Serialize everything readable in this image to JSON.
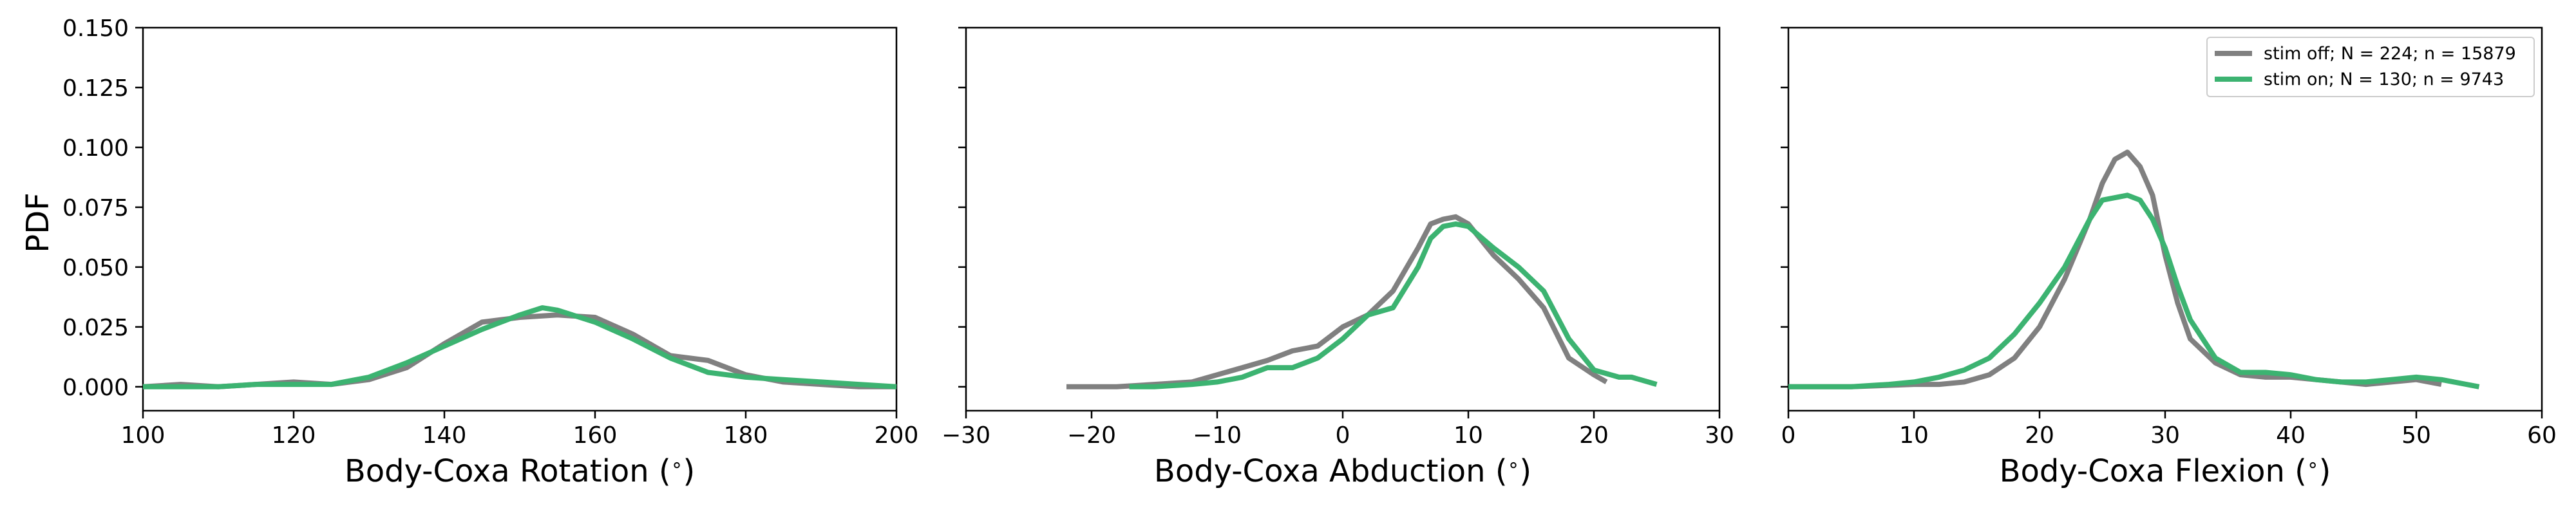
{
  "colors": {
    "stim_off": "#808080",
    "stim_on": "#3cb371"
  },
  "legend": [
    {
      "label": "stim off; N = 224; n = 15879",
      "series": "stim_off"
    },
    {
      "label": "stim on; N = 130; n = 9743",
      "series": "stim_on"
    }
  ],
  "chart_data": [
    {
      "type": "line",
      "xlabel": "Body-Coxa Rotation ($^\\circ$)",
      "xlabel_text": "Body-Coxa Rotation (",
      "ylabel": "PDF",
      "xlim": [
        100,
        200
      ],
      "ylim": [
        -0.01,
        0.15
      ],
      "xticks": [
        "100",
        "120",
        "140",
        "160",
        "180",
        "200"
      ],
      "yticks": [
        "0.000",
        "0.025",
        "0.050",
        "0.075",
        "0.100",
        "0.125",
        "0.150"
      ],
      "grid": false,
      "series": [
        {
          "key": "stim_off",
          "points": [
            [
              100,
              0.0
            ],
            [
              105,
              0.001
            ],
            [
              110,
              0.0
            ],
            [
              115,
              0.001
            ],
            [
              120,
              0.002
            ],
            [
              125,
              0.001
            ],
            [
              130,
              0.003
            ],
            [
              135,
              0.008
            ],
            [
              140,
              0.018
            ],
            [
              145,
              0.027
            ],
            [
              150,
              0.029
            ],
            [
              155,
              0.03
            ],
            [
              160,
              0.029
            ],
            [
              165,
              0.022
            ],
            [
              170,
              0.013
            ],
            [
              175,
              0.011
            ],
            [
              180,
              0.005
            ],
            [
              185,
              0.002
            ],
            [
              190,
              0.001
            ],
            [
              195,
              0.0
            ],
            [
              200,
              0.0
            ]
          ]
        },
        {
          "key": "stim_on",
          "points": [
            [
              100,
              0.0
            ],
            [
              105,
              0.0
            ],
            [
              110,
              0.0
            ],
            [
              115,
              0.001
            ],
            [
              120,
              0.001
            ],
            [
              125,
              0.001
            ],
            [
              130,
              0.004
            ],
            [
              135,
              0.01
            ],
            [
              140,
              0.017
            ],
            [
              145,
              0.024
            ],
            [
              150,
              0.03
            ],
            [
              153,
              0.033
            ],
            [
              155,
              0.032
            ],
            [
              160,
              0.027
            ],
            [
              165,
              0.02
            ],
            [
              170,
              0.012
            ],
            [
              175,
              0.006
            ],
            [
              180,
              0.004
            ],
            [
              185,
              0.003
            ],
            [
              190,
              0.002
            ],
            [
              195,
              0.001
            ],
            [
              200,
              0.0
            ]
          ]
        }
      ]
    },
    {
      "type": "line",
      "xlabel": "Body-Coxa Abduction ($^\\circ$)",
      "xlabel_text": "Body-Coxa Abduction (",
      "xlim": [
        -30,
        30
      ],
      "ylim": [
        -0.01,
        0.15
      ],
      "xticks": [
        "−30",
        "−20",
        "−10",
        "0",
        "10",
        "20",
        "30"
      ],
      "grid": false,
      "series": [
        {
          "key": "stim_off",
          "points": [
            [
              -22,
              0.0
            ],
            [
              -20,
              0.0
            ],
            [
              -18,
              0.0
            ],
            [
              -15,
              0.001
            ],
            [
              -12,
              0.002
            ],
            [
              -10,
              0.005
            ],
            [
              -8,
              0.008
            ],
            [
              -6,
              0.011
            ],
            [
              -4,
              0.015
            ],
            [
              -2,
              0.017
            ],
            [
              0,
              0.025
            ],
            [
              2,
              0.03
            ],
            [
              4,
              0.04
            ],
            [
              6,
              0.058
            ],
            [
              7,
              0.068
            ],
            [
              8,
              0.07
            ],
            [
              9,
              0.071
            ],
            [
              10,
              0.068
            ],
            [
              12,
              0.055
            ],
            [
              14,
              0.045
            ],
            [
              16,
              0.033
            ],
            [
              18,
              0.012
            ],
            [
              20,
              0.005
            ],
            [
              21,
              0.002
            ]
          ]
        },
        {
          "key": "stim_on",
          "points": [
            [
              -17,
              0.0
            ],
            [
              -15,
              0.0
            ],
            [
              -12,
              0.001
            ],
            [
              -10,
              0.002
            ],
            [
              -8,
              0.004
            ],
            [
              -6,
              0.008
            ],
            [
              -4,
              0.008
            ],
            [
              -2,
              0.012
            ],
            [
              0,
              0.02
            ],
            [
              2,
              0.03
            ],
            [
              4,
              0.033
            ],
            [
              6,
              0.05
            ],
            [
              7,
              0.062
            ],
            [
              8,
              0.067
            ],
            [
              9,
              0.068
            ],
            [
              10,
              0.067
            ],
            [
              12,
              0.058
            ],
            [
              14,
              0.05
            ],
            [
              16,
              0.04
            ],
            [
              18,
              0.02
            ],
            [
              20,
              0.007
            ],
            [
              22,
              0.004
            ],
            [
              23,
              0.004
            ],
            [
              25,
              0.001
            ]
          ]
        }
      ]
    },
    {
      "type": "line",
      "xlabel": "Body-Coxa Flexion ($^\\circ$)",
      "xlabel_text": "Body-Coxa Flexion (",
      "xlim": [
        0,
        60
      ],
      "ylim": [
        -0.01,
        0.15
      ],
      "xticks": [
        "0",
        "10",
        "20",
        "30",
        "40",
        "50",
        "60"
      ],
      "grid": false,
      "series": [
        {
          "key": "stim_off",
          "points": [
            [
              0,
              0.0
            ],
            [
              5,
              0.0
            ],
            [
              10,
              0.001
            ],
            [
              12,
              0.001
            ],
            [
              14,
              0.002
            ],
            [
              16,
              0.005
            ],
            [
              18,
              0.012
            ],
            [
              20,
              0.025
            ],
            [
              22,
              0.045
            ],
            [
              24,
              0.07
            ],
            [
              25,
              0.085
            ],
            [
              26,
              0.095
            ],
            [
              27,
              0.098
            ],
            [
              28,
              0.092
            ],
            [
              29,
              0.08
            ],
            [
              30,
              0.055
            ],
            [
              31,
              0.035
            ],
            [
              32,
              0.02
            ],
            [
              34,
              0.01
            ],
            [
              36,
              0.005
            ],
            [
              38,
              0.004
            ],
            [
              40,
              0.004
            ],
            [
              42,
              0.003
            ],
            [
              44,
              0.002
            ],
            [
              46,
              0.001
            ],
            [
              48,
              0.002
            ],
            [
              50,
              0.003
            ],
            [
              52,
              0.001
            ]
          ]
        },
        {
          "key": "stim_on",
          "points": [
            [
              0,
              0.0
            ],
            [
              5,
              0.0
            ],
            [
              8,
              0.001
            ],
            [
              10,
              0.002
            ],
            [
              12,
              0.004
            ],
            [
              14,
              0.007
            ],
            [
              16,
              0.012
            ],
            [
              18,
              0.022
            ],
            [
              20,
              0.035
            ],
            [
              22,
              0.05
            ],
            [
              24,
              0.07
            ],
            [
              25,
              0.078
            ],
            [
              27,
              0.08
            ],
            [
              28,
              0.078
            ],
            [
              29,
              0.07
            ],
            [
              30,
              0.058
            ],
            [
              31,
              0.042
            ],
            [
              32,
              0.028
            ],
            [
              34,
              0.012
            ],
            [
              36,
              0.006
            ],
            [
              38,
              0.006
            ],
            [
              40,
              0.005
            ],
            [
              42,
              0.003
            ],
            [
              44,
              0.002
            ],
            [
              46,
              0.002
            ],
            [
              48,
              0.003
            ],
            [
              50,
              0.004
            ],
            [
              52,
              0.003
            ],
            [
              55,
              0.0
            ]
          ]
        }
      ]
    }
  ]
}
